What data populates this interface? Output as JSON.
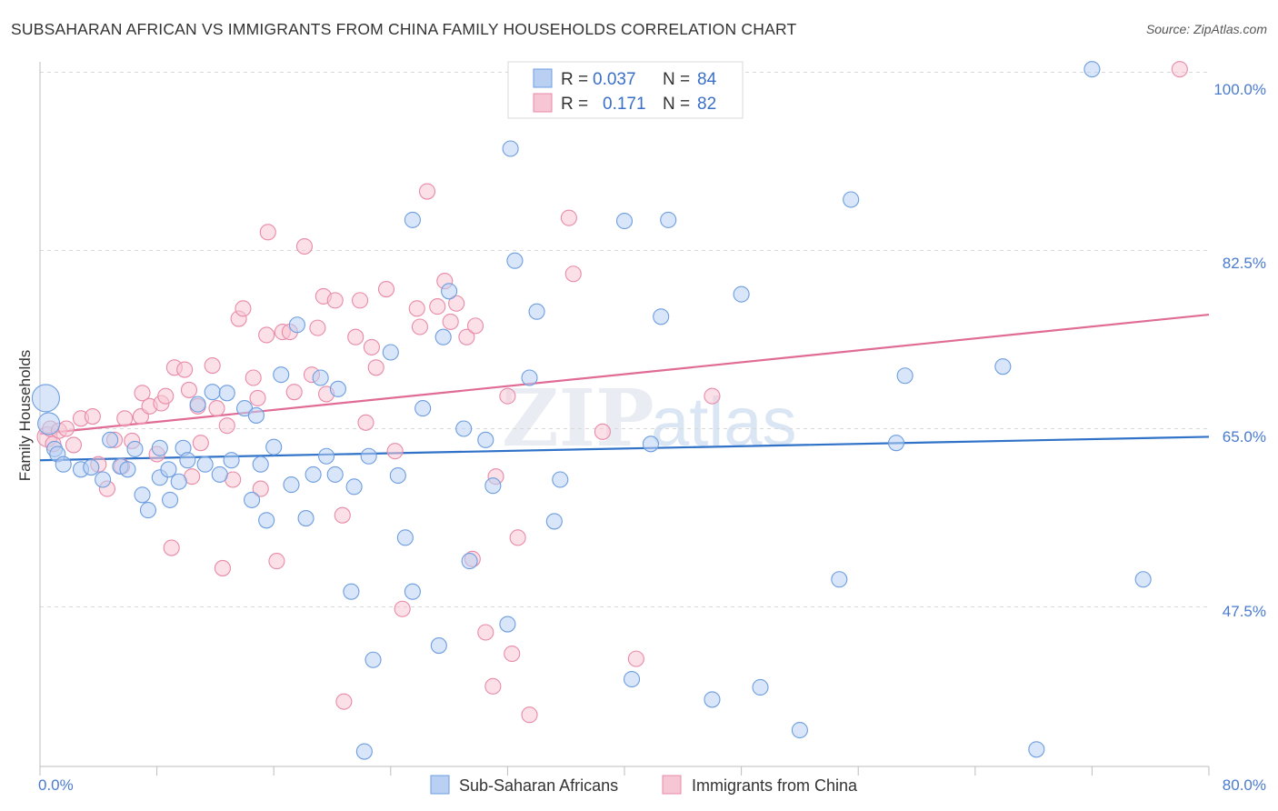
{
  "title": "SUBSAHARAN AFRICAN VS IMMIGRANTS FROM CHINA FAMILY HOUSEHOLDS CORRELATION CHART",
  "source": "Source: ZipAtlas.com",
  "colors": {
    "blue_fill": "#b9d0f2",
    "blue_stroke": "#6d9ee0",
    "blue_line": "#2f72c8",
    "pink_fill": "#f7c6d4",
    "pink_stroke": "#e98aa8",
    "pink_line": "#e06b95",
    "grid": "#d9d9d9",
    "tick_label": "#4a7bd0"
  },
  "legend": {
    "rows": [
      {
        "r_label": "R =",
        "r_value": "0.037",
        "n_label": "N =",
        "n_value": "84"
      },
      {
        "r_label": "R =",
        "r_value": "0.171",
        "n_label": "N =",
        "n_value": "82"
      }
    ]
  },
  "watermark": {
    "zip": "ZIP",
    "atlas": "atlas"
  },
  "chart_data": {
    "type": "scatter",
    "title": "SUBSAHARAN AFRICAN VS IMMIGRANTS FROM CHINA FAMILY HOUSEHOLDS CORRELATION CHART",
    "xlabel": "",
    "ylabel": "Family Households",
    "xlim": [
      0,
      80
    ],
    "ylim": [
      30,
      101.5
    ],
    "x_tick_labels": [
      "0.0%",
      "80.0%"
    ],
    "y_ticks": [
      47.5,
      65.0,
      82.5,
      100.0
    ],
    "y_tick_labels": [
      "47.5%",
      "65.0%",
      "82.5%",
      "100.0%"
    ],
    "grid": true,
    "legend_position": "bottom",
    "series": [
      {
        "name": "Sub-Saharan Africans",
        "color": "#6d9ee0",
        "trend": {
          "x": [
            0,
            80
          ],
          "y": [
            61.9,
            64.2
          ]
        },
        "points": [
          [
            0.4,
            68.0
          ],
          [
            0.6,
            65.5
          ],
          [
            1.0,
            63.0
          ],
          [
            1.2,
            62.5
          ],
          [
            1.6,
            61.5
          ],
          [
            2.8,
            61.0
          ],
          [
            3.5,
            61.2
          ],
          [
            4.3,
            60.0
          ],
          [
            4.8,
            63.9
          ],
          [
            5.5,
            61.3
          ],
          [
            6.0,
            61.0
          ],
          [
            6.5,
            63.0
          ],
          [
            7.0,
            58.5
          ],
          [
            7.4,
            57.0
          ],
          [
            8.2,
            63.1
          ],
          [
            8.2,
            60.2
          ],
          [
            8.8,
            61.0
          ],
          [
            8.9,
            58.0
          ],
          [
            9.5,
            59.8
          ],
          [
            9.8,
            63.1
          ],
          [
            10.1,
            61.9
          ],
          [
            10.8,
            67.4
          ],
          [
            11.3,
            61.5
          ],
          [
            11.8,
            68.6
          ],
          [
            12.3,
            60.5
          ],
          [
            12.8,
            68.5
          ],
          [
            13.1,
            61.9
          ],
          [
            14.0,
            67.0
          ],
          [
            14.8,
            66.3
          ],
          [
            15.1,
            61.5
          ],
          [
            14.5,
            58.0
          ],
          [
            15.5,
            56.0
          ],
          [
            16.0,
            63.2
          ],
          [
            16.5,
            70.3
          ],
          [
            17.2,
            59.5
          ],
          [
            17.6,
            75.2
          ],
          [
            18.2,
            56.2
          ],
          [
            18.7,
            60.5
          ],
          [
            19.2,
            70.0
          ],
          [
            19.6,
            62.3
          ],
          [
            20.2,
            60.5
          ],
          [
            20.4,
            68.9
          ],
          [
            21.3,
            49.0
          ],
          [
            21.5,
            59.3
          ],
          [
            22.2,
            33.3
          ],
          [
            22.5,
            62.3
          ],
          [
            22.8,
            42.3
          ],
          [
            24.0,
            72.5
          ],
          [
            24.5,
            60.4
          ],
          [
            25.0,
            54.3
          ],
          [
            25.5,
            49.0
          ],
          [
            25.5,
            85.5
          ],
          [
            26.2,
            67.0
          ],
          [
            27.3,
            43.7
          ],
          [
            27.6,
            74.0
          ],
          [
            28.0,
            78.5
          ],
          [
            29.0,
            65.0
          ],
          [
            29.4,
            52.0
          ],
          [
            30.5,
            63.9
          ],
          [
            31.0,
            59.4
          ],
          [
            32.0,
            45.8
          ],
          [
            32.2,
            92.5
          ],
          [
            32.5,
            81.5
          ],
          [
            33.5,
            70.0
          ],
          [
            34.0,
            76.5
          ],
          [
            35.2,
            55.9
          ],
          [
            35.6,
            60.0
          ],
          [
            40.0,
            85.4
          ],
          [
            40.5,
            40.4
          ],
          [
            41.8,
            63.5
          ],
          [
            42.5,
            76.0
          ],
          [
            43.0,
            85.5
          ],
          [
            46.0,
            38.4
          ],
          [
            48.0,
            78.2
          ],
          [
            49.3,
            39.6
          ],
          [
            52.0,
            35.4
          ],
          [
            54.7,
            50.2
          ],
          [
            55.5,
            87.5
          ],
          [
            58.6,
            63.6
          ],
          [
            59.2,
            70.2
          ],
          [
            65.9,
            71.1
          ],
          [
            68.2,
            33.5
          ],
          [
            72.0,
            100.3
          ],
          [
            75.5,
            50.2
          ]
        ]
      },
      {
        "name": "Immigrants from China",
        "color": "#e98aa8",
        "trend": {
          "x": [
            0,
            80
          ],
          "y": [
            64.5,
            76.2
          ]
        },
        "points": [
          [
            0.5,
            64.2
          ],
          [
            0.7,
            65.0
          ],
          [
            0.9,
            63.5
          ],
          [
            1.3,
            64.8
          ],
          [
            1.8,
            65.0
          ],
          [
            2.3,
            63.4
          ],
          [
            2.8,
            66.0
          ],
          [
            3.6,
            66.2
          ],
          [
            4.0,
            61.5
          ],
          [
            4.6,
            59.1
          ],
          [
            5.1,
            63.9
          ],
          [
            5.6,
            61.3
          ],
          [
            5.8,
            66.0
          ],
          [
            6.3,
            63.8
          ],
          [
            6.9,
            66.2
          ],
          [
            7.0,
            68.5
          ],
          [
            7.5,
            67.2
          ],
          [
            8.0,
            62.5
          ],
          [
            8.3,
            67.5
          ],
          [
            8.6,
            68.2
          ],
          [
            9.0,
            53.3
          ],
          [
            9.2,
            71.0
          ],
          [
            9.9,
            70.8
          ],
          [
            10.2,
            68.8
          ],
          [
            10.4,
            60.3
          ],
          [
            10.8,
            67.2
          ],
          [
            11.0,
            63.6
          ],
          [
            11.8,
            71.2
          ],
          [
            12.1,
            67.0
          ],
          [
            12.5,
            51.3
          ],
          [
            12.8,
            65.3
          ],
          [
            13.2,
            60.0
          ],
          [
            13.6,
            75.8
          ],
          [
            13.9,
            76.8
          ],
          [
            14.6,
            70.0
          ],
          [
            14.9,
            68.0
          ],
          [
            15.1,
            59.1
          ],
          [
            15.5,
            74.2
          ],
          [
            15.6,
            84.3
          ],
          [
            16.2,
            52.0
          ],
          [
            16.6,
            74.5
          ],
          [
            17.1,
            74.5
          ],
          [
            17.4,
            68.6
          ],
          [
            18.1,
            82.9
          ],
          [
            18.6,
            70.3
          ],
          [
            19.0,
            74.9
          ],
          [
            19.4,
            78.0
          ],
          [
            19.6,
            68.4
          ],
          [
            20.2,
            77.6
          ],
          [
            20.7,
            56.5
          ],
          [
            21.6,
            74.0
          ],
          [
            21.9,
            77.6
          ],
          [
            22.3,
            65.6
          ],
          [
            22.7,
            73.0
          ],
          [
            23.0,
            71.0
          ],
          [
            23.7,
            78.7
          ],
          [
            24.8,
            47.3
          ],
          [
            25.8,
            76.8
          ],
          [
            26.0,
            75.0
          ],
          [
            26.5,
            88.3
          ],
          [
            27.2,
            77.0
          ],
          [
            27.7,
            79.5
          ],
          [
            28.1,
            75.5
          ],
          [
            28.5,
            77.3
          ],
          [
            29.2,
            74.0
          ],
          [
            29.8,
            75.1
          ],
          [
            30.5,
            45.0
          ],
          [
            31.0,
            39.7
          ],
          [
            31.2,
            60.3
          ],
          [
            32.0,
            68.2
          ],
          [
            32.3,
            42.9
          ],
          [
            32.7,
            54.3
          ],
          [
            33.5,
            36.9
          ],
          [
            36.2,
            85.7
          ],
          [
            36.5,
            80.2
          ],
          [
            38.5,
            64.7
          ],
          [
            40.8,
            42.4
          ],
          [
            46.0,
            68.2
          ],
          [
            78.0,
            100.3
          ],
          [
            20.8,
            38.2
          ],
          [
            24.3,
            62.8
          ],
          [
            29.6,
            52.2
          ]
        ]
      }
    ]
  }
}
